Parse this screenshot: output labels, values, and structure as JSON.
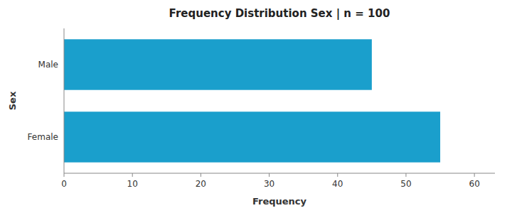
{
  "chart_data": {
    "type": "bar",
    "orientation": "horizontal",
    "title": "Frequency Distribution Sex | n = 100",
    "categories": [
      "Female",
      "Male"
    ],
    "values": [
      55,
      45
    ],
    "color": "#1a9fcc",
    "xlabel": "Frequency",
    "ylabel": "Sex",
    "xlim": [
      0,
      63
    ],
    "xticks": [
      0,
      10,
      20,
      30,
      40,
      50,
      60
    ],
    "grid": false
  }
}
